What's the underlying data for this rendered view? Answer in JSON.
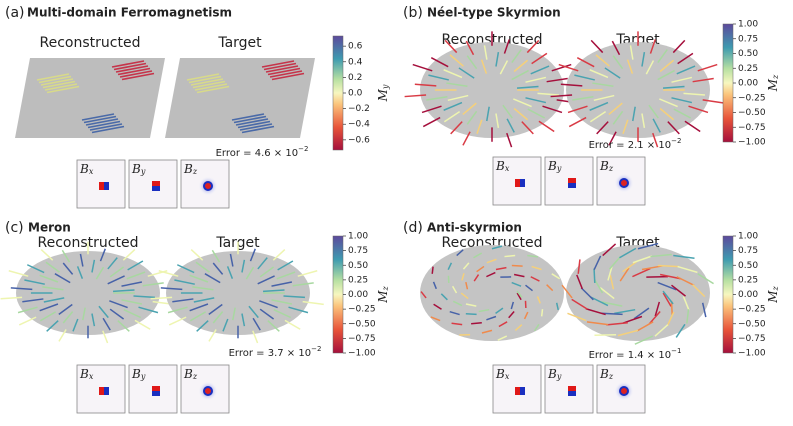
{
  "panels": [
    {
      "label": "(a)",
      "title": "Multi-domain Ferromagnetism",
      "reconstructed": "Reconstructed",
      "target": "Target",
      "error": {
        "text": "Error = 4.6 × 10",
        "exponent": "−2"
      },
      "maps": [
        {
          "symbol": "B",
          "sub": "x"
        },
        {
          "symbol": "B",
          "sub": "y"
        },
        {
          "symbol": "B",
          "sub": "z"
        }
      ],
      "colorbar": {
        "symbol": "M",
        "sub": "y",
        "lim": [
          -0.73,
          0.73
        ],
        "ticks": [
          0.6,
          0.4,
          0.2,
          {
            "value": 0,
            "label": "0.0"
          },
          {
            "value": -0.2,
            "label": "−0.2"
          },
          {
            "value": -0.4,
            "label": "−0.4"
          },
          {
            "value": -0.6,
            "label": "−0.6"
          }
        ]
      }
    },
    {
      "label": "(b)",
      "title": "Néel-type Skyrmion",
      "reconstructed": "Reconstructed",
      "target": "Target",
      "error": {
        "text": "Error = 2.1 × 10",
        "exponent": "−2"
      },
      "maps": [
        {
          "symbol": "B",
          "sub": "x"
        },
        {
          "symbol": "B",
          "sub": "y"
        },
        {
          "symbol": "B",
          "sub": "z"
        }
      ],
      "colorbar": {
        "symbol": "M",
        "sub": "z",
        "lim": [
          -1,
          1
        ],
        "ticks": [
          {
            "value": 1,
            "label": "1.00"
          },
          {
            "value": 0.75,
            "label": "0.75"
          },
          {
            "value": 0.5,
            "label": "0.50"
          },
          {
            "value": 0.25,
            "label": "0.25"
          },
          {
            "value": 0,
            "label": "0.00"
          },
          {
            "value": -0.25,
            "label": "−0.25"
          },
          {
            "value": -0.5,
            "label": "−0.50"
          },
          {
            "value": -0.75,
            "label": "−0.75"
          },
          {
            "value": -1,
            "label": "−1.00"
          }
        ]
      }
    },
    {
      "label": "(c)",
      "title": "Meron",
      "reconstructed": "Reconstructed",
      "target": "Target",
      "error": {
        "text": "Error = 3.7 × 10",
        "exponent": "−2"
      },
      "maps": [
        {
          "symbol": "B",
          "sub": "x"
        },
        {
          "symbol": "B",
          "sub": "y"
        },
        {
          "symbol": "B",
          "sub": "z"
        }
      ],
      "colorbar": {
        "symbol": "M",
        "sub": "z",
        "lim": [
          -1,
          1
        ],
        "ticks": [
          {
            "value": 1,
            "label": "1.00"
          },
          {
            "value": 0.75,
            "label": "0.75"
          },
          {
            "value": 0.5,
            "label": "0.50"
          },
          {
            "value": 0.25,
            "label": "0.25"
          },
          {
            "value": 0,
            "label": "0.00"
          },
          {
            "value": -0.25,
            "label": "−0.25"
          },
          {
            "value": -0.5,
            "label": "−0.50"
          },
          {
            "value": -0.75,
            "label": "−0.75"
          },
          {
            "value": -1,
            "label": "−1.00"
          }
        ]
      }
    },
    {
      "label": "(d)",
      "title": "Anti-skyrmion",
      "reconstructed": "Reconstructed",
      "target": "Target",
      "error": {
        "text": "Error = 1.4 × 10",
        "exponent": "−1"
      },
      "maps": [
        {
          "symbol": "B",
          "sub": "x"
        },
        {
          "symbol": "B",
          "sub": "y"
        },
        {
          "symbol": "B",
          "sub": "z"
        }
      ],
      "colorbar": {
        "symbol": "M",
        "sub": "z",
        "lim": [
          -1,
          1
        ],
        "ticks": [
          {
            "value": 1,
            "label": "1.00"
          },
          {
            "value": 0.75,
            "label": "0.75"
          },
          {
            "value": 0.5,
            "label": "0.50"
          },
          {
            "value": 0.25,
            "label": "0.25"
          },
          {
            "value": 0,
            "label": "0.00"
          },
          {
            "value": -0.25,
            "label": "−0.25"
          },
          {
            "value": -0.5,
            "label": "−0.50"
          },
          {
            "value": -0.75,
            "label": "−0.75"
          },
          {
            "value": -1,
            "label": "−1.00"
          }
        ]
      }
    }
  ]
}
